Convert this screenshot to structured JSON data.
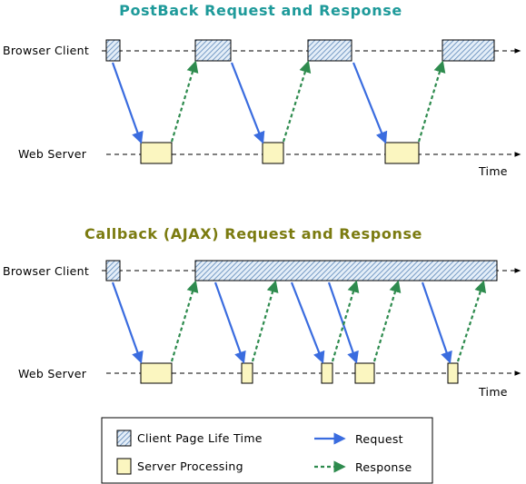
{
  "diagrams": [
    {
      "title": "PostBack Request and Response",
      "title_color": "#1e9a9a",
      "client_label": "Browser Client",
      "server_label": "Web Server",
      "time_label": "Time"
    },
    {
      "title": "Callback (AJAX) Request and Response",
      "title_color": "#7b7b10",
      "client_label": "Browser Client",
      "server_label": "Web Server",
      "time_label": "Time"
    }
  ],
  "legend": {
    "client_page_life_time": "Client Page Life Time",
    "server_processing": "Server Processing",
    "request": "Request",
    "response": "Response"
  },
  "colors": {
    "request_arrow": "#3a6cdf",
    "response_arrow": "#2e8b4e",
    "server_box": "#fbf6c0",
    "client_hatch": "#5b86b8"
  }
}
